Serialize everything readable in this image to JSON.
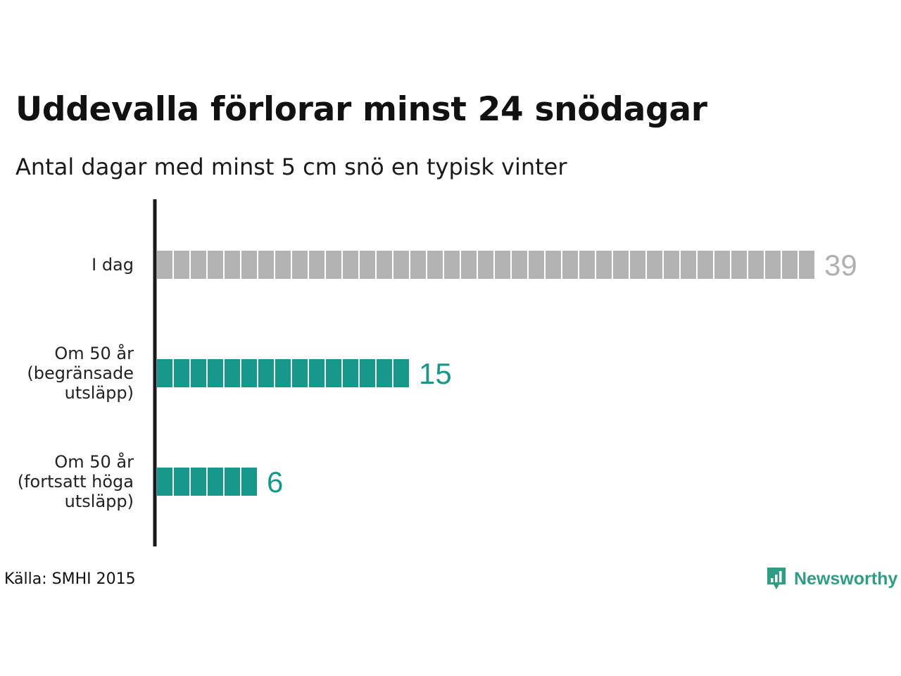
{
  "title": "Uddevalla förlorar minst 24 snödagar",
  "subtitle": "Antal dagar med minst 5 cm snö en typisk vinter",
  "source": "Källa: SMHI 2015",
  "brand": {
    "name": "Newsworthy",
    "icon": "newsworthy-logo-icon",
    "color": "#2e9d84"
  },
  "chart_data": {
    "type": "bar",
    "orientation": "horizontal",
    "title": "Uddevalla förlorar minst 24 snödagar",
    "subtitle": "Antal dagar med minst 5 cm snö en typisk vinter",
    "categories": [
      "I dag",
      "Om 50 år\n(begränsade\nutsläpp)",
      "Om 50 år\n(fortsatt höga\nutsläpp)"
    ],
    "values": [
      39,
      15,
      6
    ],
    "value_labels": [
      "39",
      "15",
      "6"
    ],
    "colors": [
      "#b3b3b3",
      "#17978a",
      "#17978a"
    ],
    "label_colors": [
      "#b0b0b0",
      "#17978a",
      "#17978a"
    ],
    "style": "unit-squares",
    "xlim": [
      0,
      40
    ],
    "grid": false
  }
}
